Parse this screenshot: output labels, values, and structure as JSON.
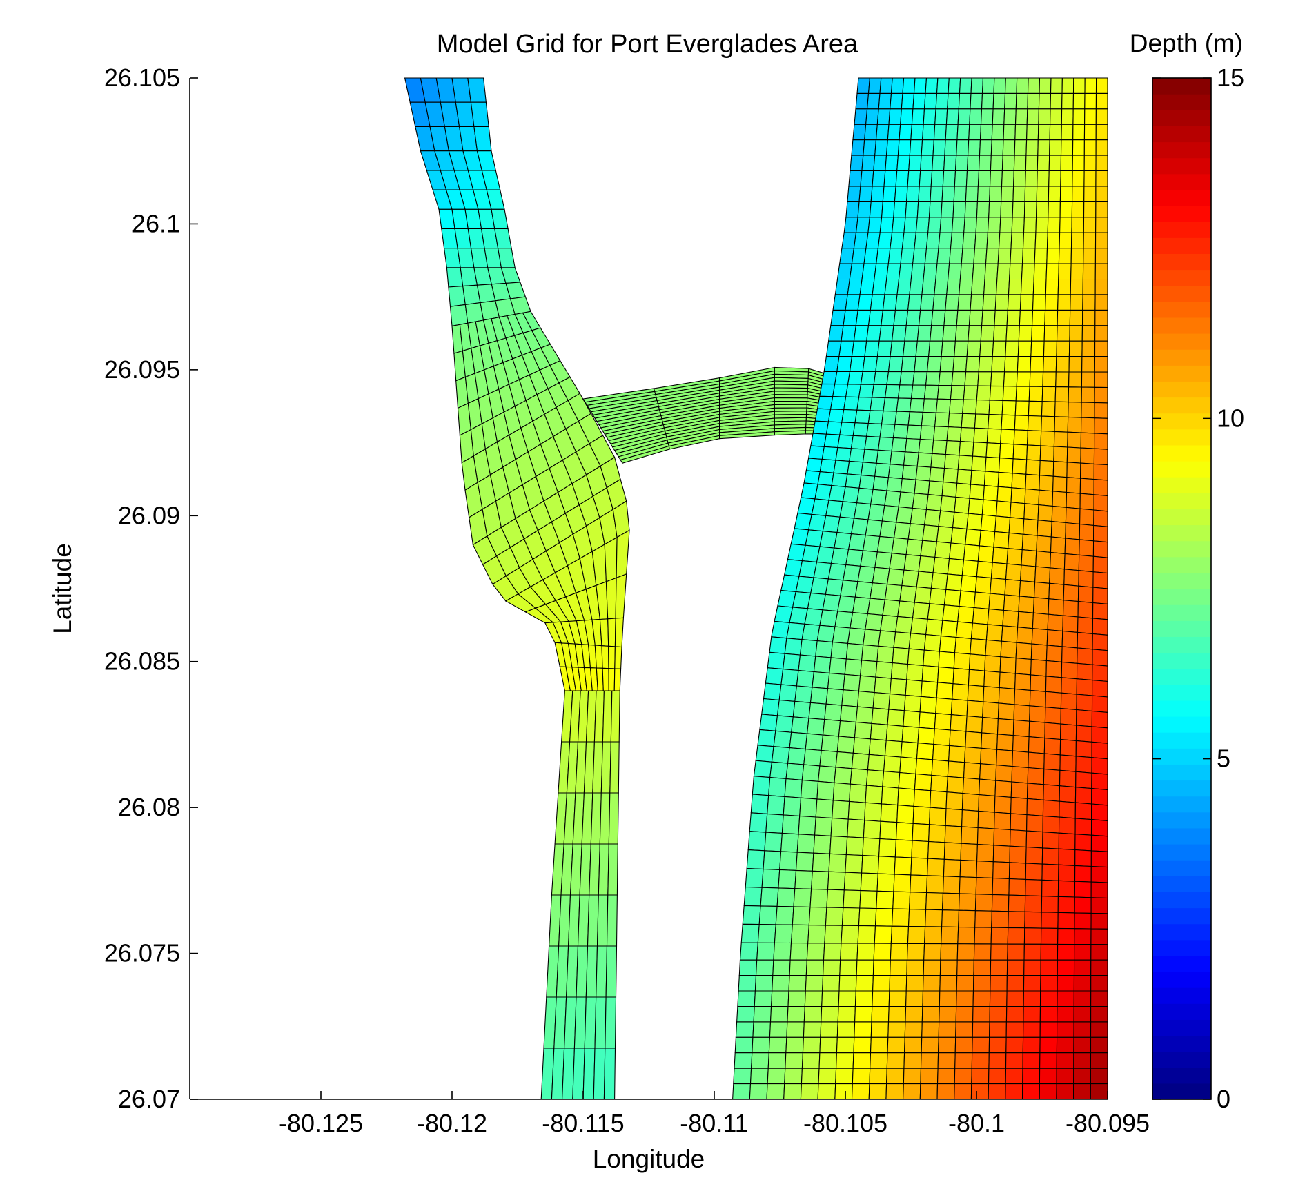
{
  "chart_data": {
    "type": "heatmap",
    "title": "Model Grid for Port Everglades Area",
    "xlabel": "Longitude",
    "ylabel": "Latitude",
    "xlim": [
      -80.13,
      -80.095
    ],
    "ylim": [
      26.07,
      26.105
    ],
    "xticks": [
      -80.125,
      -80.12,
      -80.115,
      -80.11,
      -80.105,
      -80.1,
      -80.095
    ],
    "yticks": [
      26.07,
      26.075,
      26.08,
      26.085,
      26.09,
      26.095,
      26.1,
      26.105
    ],
    "colorbar": {
      "label": "Depth (m)",
      "range": [
        0,
        15
      ],
      "ticks": [
        0,
        5,
        10,
        15
      ],
      "colormap": "jet"
    },
    "regions": [
      {
        "name": "upper-channel",
        "left": [
          [
            -80.1218,
            26.105
          ],
          [
            -80.1212,
            26.1025
          ],
          [
            -80.1205,
            26.1005
          ],
          [
            -80.1202,
            26.0985
          ],
          [
            -80.12,
            26.0965
          ]
        ],
        "right": [
          [
            -80.1188,
            26.105
          ],
          [
            -80.1185,
            26.1025
          ],
          [
            -80.118,
            26.1005
          ],
          [
            -80.1176,
            26.0985
          ],
          [
            -80.117,
            26.097
          ]
        ],
        "rows": 12,
        "cols": 5,
        "depth": [
          [
            3.6,
            4.8
          ],
          [
            7.2,
            7.4
          ]
        ]
      },
      {
        "name": "turning-basin",
        "left": [
          [
            -80.12,
            26.0965
          ],
          [
            -80.1198,
            26.094
          ],
          [
            -80.1196,
            26.0915
          ],
          [
            -80.1192,
            26.089
          ],
          [
            -80.1182,
            26.0872
          ],
          [
            -80.1162,
            26.0862
          ],
          [
            -80.1157,
            26.084
          ]
        ],
        "right": [
          [
            -80.117,
            26.097
          ],
          [
            -80.116,
            26.0955
          ],
          [
            -80.115,
            26.094
          ],
          [
            -80.1138,
            26.092
          ],
          [
            -80.1132,
            26.09
          ],
          [
            -80.1135,
            26.086
          ],
          [
            -80.1136,
            26.084
          ]
        ],
        "rows": 16,
        "cols": 10,
        "depth": [
          [
            7.4,
            7.2
          ],
          [
            9.3,
            9.4
          ]
        ]
      },
      {
        "name": "lower-channel",
        "left": [
          [
            -80.1157,
            26.084
          ],
          [
            -80.1162,
            26.077
          ],
          [
            -80.1166,
            26.07
          ]
        ],
        "right": [
          [
            -80.1136,
            26.084
          ],
          [
            -80.1137,
            26.077
          ],
          [
            -80.1138,
            26.07
          ]
        ],
        "rows": 8,
        "cols": 7,
        "depth": [
          [
            8.8,
            8.8
          ],
          [
            6.6,
            6.4
          ]
        ]
      },
      {
        "name": "connector-cut",
        "left": [
          [
            -80.115,
            26.094
          ],
          [
            -80.1105,
            26.0946
          ],
          [
            -80.107,
            26.0952
          ],
          [
            -80.1055,
            26.0948
          ]
        ],
        "right": [
          [
            -80.1135,
            26.0918
          ],
          [
            -80.1105,
            26.0926
          ],
          [
            -80.107,
            26.0928
          ],
          [
            -80.1058,
            26.0928
          ]
        ],
        "rows": 5,
        "cols": 20,
        "depth": [
          [
            7.6,
            7.8
          ],
          [
            7.8,
            7.8
          ]
        ]
      },
      {
        "name": "nearshore-grid",
        "left": [
          [
            -80.1045,
            26.105
          ],
          [
            -80.105,
            26.1
          ],
          [
            -80.1058,
            26.095
          ],
          [
            -80.1066,
            26.091
          ],
          [
            -80.1078,
            26.086
          ],
          [
            -80.1085,
            26.081
          ],
          [
            -80.109,
            26.075
          ],
          [
            -80.1093,
            26.07
          ]
        ],
        "right": [
          [
            -80.095,
            26.105
          ],
          [
            -80.095,
            26.07
          ]
        ],
        "rows": 66,
        "cols": 22,
        "depth": [
          [
            4.4,
            9.6
          ],
          [
            7.0,
            14.6
          ]
        ]
      }
    ]
  }
}
